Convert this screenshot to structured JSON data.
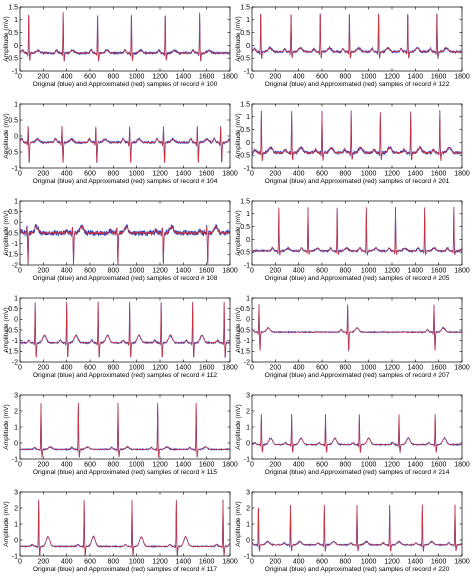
{
  "chart_data": [
    {
      "type": "line",
      "xlabel": "Original (blue) and Approximated (red) samples of record # 100",
      "ylabel": "Amplitude (mV)",
      "xlim": [
        0,
        1800
      ],
      "ylim": [
        -1,
        1.5
      ],
      "xticks": [
        0,
        200,
        400,
        600,
        800,
        1000,
        1200,
        1400,
        1600,
        1800
      ],
      "yticks": [
        -1,
        -0.5,
        0,
        0.5,
        1,
        1.5
      ],
      "legend": [
        "Original",
        "Approximated"
      ],
      "colors": [
        "#1f3fbf",
        "#e03030"
      ],
      "beats": [
        75,
        370,
        665,
        955,
        1245,
        1540
      ],
      "baseline": -0.3,
      "r_peak": 1.3,
      "s_depth": -0.6,
      "t_amp": 0.1,
      "noise": 0.04
    },
    {
      "type": "line",
      "xlabel": "Original (blue) and Approximated (red) samples of record # 122",
      "ylabel": "Amplitude (mV)",
      "xlim": [
        0,
        1800
      ],
      "ylim": [
        -1,
        1.5
      ],
      "xticks": [
        0,
        200,
        400,
        600,
        800,
        1000,
        1200,
        1400,
        1600,
        1800
      ],
      "yticks": [
        -1,
        -0.5,
        0,
        0.5,
        1,
        1.5
      ],
      "legend": [
        "Original",
        "Approximated"
      ],
      "colors": [
        "#1f3fbf",
        "#e03030"
      ],
      "beats": [
        75,
        335,
        585,
        835,
        1085,
        1335,
        1585
      ],
      "baseline": -0.25,
      "r_peak": 1.35,
      "s_depth": -0.5,
      "t_amp": 0.15,
      "noise": 0.04
    },
    {
      "type": "line",
      "xlabel": "Original (blue) and Approximated (red) samples of record # 104",
      "ylabel": "Amplitude (mV)",
      "xlim": [
        0,
        1800
      ],
      "ylim": [
        -1,
        1
      ],
      "xticks": [
        0,
        200,
        400,
        600,
        800,
        1000,
        1200,
        1400,
        1600,
        1800
      ],
      "yticks": [
        -1,
        -0.5,
        0,
        0.5,
        1
      ],
      "legend": [
        "Original",
        "Approximated"
      ],
      "colors": [
        "#1f3fbf",
        "#e03030"
      ],
      "beats": [
        70,
        360,
        650,
        940,
        1230,
        1520,
        1720
      ],
      "baseline": -0.2,
      "r_peak": 0.3,
      "s_depth": -0.85,
      "t_amp": 0.1,
      "noise": 0.03
    },
    {
      "type": "line",
      "xlabel": "Original (blue) and Approximated (red) samples of record # 201",
      "ylabel": "Amplitude (mV)",
      "xlim": [
        0,
        1800
      ],
      "ylim": [
        -1,
        1.5
      ],
      "xticks": [
        0,
        200,
        400,
        600,
        800,
        1000,
        1200,
        1400,
        1600,
        1800
      ],
      "yticks": [
        -1,
        -0.5,
        0,
        0.5,
        1,
        1.5
      ],
      "legend": [
        "Original",
        "Approximated"
      ],
      "colors": [
        "#1f3fbf",
        "#e03030"
      ],
      "beats": [
        80,
        340,
        600,
        850,
        1100,
        1360,
        1610
      ],
      "baseline": -0.4,
      "r_peak": 1.2,
      "s_depth": -0.7,
      "t_amp": 0.2,
      "noise": 0.06
    },
    {
      "type": "line",
      "xlabel": "Original (blue) and Approximated (red) samples of record # 108",
      "ylabel": "Amplitude (mV)",
      "xlim": [
        0,
        1800
      ],
      "ylim": [
        -2,
        1
      ],
      "xticks": [
        0,
        200,
        400,
        600,
        800,
        1000,
        1200,
        1400,
        1600,
        1800
      ],
      "yticks": [
        -2,
        -1.5,
        -1,
        -0.5,
        0,
        0.5,
        1
      ],
      "legend": [
        "Original",
        "Approximated"
      ],
      "colors": [
        "#1f3fbf",
        "#e03030"
      ],
      "beats": [
        60,
        450,
        830,
        1220,
        1600
      ],
      "baseline": -0.5,
      "r_peak": -0.2,
      "s_depth": -2.0,
      "t_amp": 0.3,
      "noise": 0.12
    },
    {
      "type": "line",
      "xlabel": "Original (blue) and Approximated (red) samples of record # 205",
      "ylabel": "Amplitude (mV)",
      "xlim": [
        0,
        1800
      ],
      "ylim": [
        -1,
        1.5
      ],
      "xticks": [
        0,
        200,
        400,
        600,
        800,
        1000,
        1200,
        1400,
        1600,
        1800
      ],
      "yticks": [
        -1,
        -0.5,
        0,
        0.5,
        1,
        1.5
      ],
      "legend": [
        "Original",
        "Approximated"
      ],
      "colors": [
        "#1f3fbf",
        "#e03030"
      ],
      "beats": [
        230,
        480,
        730,
        980,
        1230,
        1480,
        1730
      ],
      "baseline": -0.45,
      "r_peak": 1.25,
      "s_depth": -0.6,
      "t_amp": 0.1,
      "noise": 0.03
    },
    {
      "type": "line",
      "xlabel": "Original (blue) and Approximated (red) samples of record # 112",
      "ylabel": "Amplitude (mV)",
      "xlim": [
        0,
        1800
      ],
      "ylim": [
        -2,
        1
      ],
      "xticks": [
        0,
        200,
        400,
        600,
        800,
        1000,
        1200,
        1400,
        1600,
        1800
      ],
      "yticks": [
        -2,
        -1.5,
        -1,
        -0.5,
        0,
        0.5,
        1
      ],
      "legend": [
        "Original",
        "Approximated"
      ],
      "colors": [
        "#1f3fbf",
        "#e03030"
      ],
      "beats": [
        130,
        400,
        670,
        940,
        1210,
        1480,
        1750
      ],
      "baseline": -1.1,
      "r_peak": 0.8,
      "s_depth": -1.8,
      "t_amp": 0.35,
      "noise": 0.03
    },
    {
      "type": "line",
      "xlabel": "Original (blue) and Approximated (red) samples of record # 207",
      "ylabel": "Amplitude (mV)",
      "xlim": [
        0,
        1800
      ],
      "ylim": [
        -2,
        1
      ],
      "xticks": [
        0,
        200,
        400,
        600,
        800,
        1000,
        1200,
        1400,
        1600,
        1800
      ],
      "yticks": [
        -2,
        -1.5,
        -1,
        -0.5,
        0,
        0.5,
        1
      ],
      "legend": [
        "Original",
        "Approximated"
      ],
      "colors": [
        "#1f3fbf",
        "#e03030"
      ],
      "beats": [
        60,
        820,
        1560
      ],
      "baseline": -0.6,
      "r_peak": 0.7,
      "s_depth": -1.5,
      "t_amp": 0.2,
      "noise": 0.02
    },
    {
      "type": "line",
      "xlabel": "Original (blue) and Approximated (red) samples of record # 115",
      "ylabel": "Amplitude (mV)",
      "xlim": [
        0,
        1800
      ],
      "ylim": [
        -1,
        3
      ],
      "xticks": [
        0,
        200,
        400,
        600,
        800,
        1000,
        1200,
        1400,
        1600,
        1800
      ],
      "yticks": [
        -1,
        0,
        1,
        2,
        3
      ],
      "legend": [
        "Original",
        "Approximated"
      ],
      "colors": [
        "#1f3fbf",
        "#e03030"
      ],
      "beats": [
        180,
        500,
        840,
        1180,
        1510
      ],
      "baseline": -0.4,
      "r_peak": 2.5,
      "s_depth": -0.9,
      "t_amp": 0.15,
      "noise": 0.03
    },
    {
      "type": "line",
      "xlabel": "Original (blue) and Approximated (red) samples of record # 214",
      "ylabel": "Amplitude (mV)",
      "xlim": [
        0,
        1800
      ],
      "ylim": [
        -1,
        3
      ],
      "xticks": [
        0,
        200,
        400,
        600,
        800,
        1000,
        1200,
        1400,
        1600,
        1800
      ],
      "yticks": [
        -1,
        0,
        1,
        2,
        3
      ],
      "legend": [
        "Original",
        "Approximated"
      ],
      "colors": [
        "#1f3fbf",
        "#e03030"
      ],
      "beats": [
        80,
        340,
        630,
        920,
        1260,
        1570
      ],
      "baseline": -0.1,
      "r_peak": 1.8,
      "s_depth": -0.6,
      "t_amp": 0.4,
      "noise": 0.03
    },
    {
      "type": "line",
      "xlabel": "Original (blue) and Approximated (red) samples of record # 117",
      "ylabel": "Amplitude (mV)",
      "xlim": [
        0,
        1800
      ],
      "ylim": [
        -1,
        3
      ],
      "xticks": [
        0,
        200,
        400,
        600,
        800,
        1000,
        1200,
        1400,
        1600,
        1800
      ],
      "yticks": [
        -1,
        0,
        1,
        2,
        3
      ],
      "legend": [
        "Original",
        "Approximated"
      ],
      "colors": [
        "#1f3fbf",
        "#e03030"
      ],
      "beats": [
        160,
        550,
        960,
        1340,
        1740
      ],
      "baseline": -0.4,
      "r_peak": 2.5,
      "s_depth": -1.0,
      "t_amp": 0.6,
      "noise": 0.03
    },
    {
      "type": "line",
      "xlabel": "Original (blue) and Approximated (red) samples of record # 220",
      "ylabel": "Amplitude (mV)",
      "xlim": [
        0,
        1800
      ],
      "ylim": [
        -1,
        3
      ],
      "xticks": [
        0,
        200,
        400,
        600,
        800,
        1000,
        1200,
        1400,
        1600,
        1800
      ],
      "yticks": [
        -1,
        0,
        1,
        2,
        3
      ],
      "legend": [
        "Original",
        "Approximated"
      ],
      "colors": [
        "#1f3fbf",
        "#e03030"
      ],
      "beats": [
        55,
        330,
        620,
        900,
        1180,
        1460,
        1740
      ],
      "baseline": -0.3,
      "r_peak": 2.2,
      "s_depth": -0.7,
      "t_amp": 0.2,
      "noise": 0.03
    }
  ]
}
